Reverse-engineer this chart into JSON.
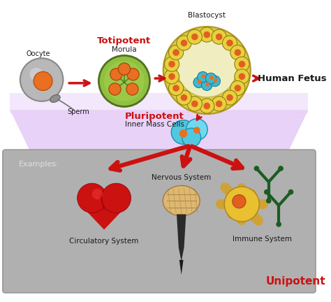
{
  "fig_width": 4.74,
  "fig_height": 4.32,
  "dpi": 100,
  "bg_color": "#ffffff",
  "arrow_color": "#cc0000",
  "text_totipotent": "Totipotent",
  "text_morula": "Morula",
  "text_blastocyst": "Blastocyst",
  "text_pluripotent": "Pluripotent",
  "text_inner_mass": "Inner Mass Cells",
  "text_human_fetus": "Human Fetus",
  "text_oocyte": "Oocyte",
  "text_sperm": "Sperm",
  "text_examples": "Examples:",
  "text_circulatory": "Circulatory System",
  "text_nervous": "Nervous System",
  "text_immune": "Immune System",
  "text_unipotent": "Unipotent",
  "red_color": "#cc1111",
  "dark_text": "#1a1a1a",
  "bottom_panel_color": "#aaaaaa",
  "lavender_color": "#d8b8f0"
}
